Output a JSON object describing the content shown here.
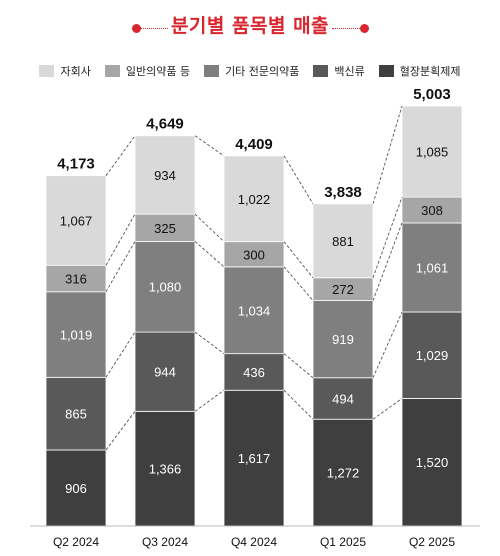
{
  "chart_data": {
    "type": "bar",
    "stacked": true,
    "title": "분기별 품목별 매출",
    "categories": [
      "Q2 2024",
      "Q3 2024",
      "Q4 2024",
      "Q1 2025",
      "Q2 2025"
    ],
    "series": [
      {
        "name": "혈장분획제제",
        "color": "#3f3f3f",
        "text_color": "#ffffff",
        "values": [
          906,
          1366,
          1617,
          1272,
          1520
        ]
      },
      {
        "name": "백신류",
        "color": "#595959",
        "text_color": "#ffffff",
        "values": [
          865,
          944,
          436,
          494,
          1029
        ]
      },
      {
        "name": "기타 전문의약품",
        "color": "#7f7f7f",
        "text_color": "#ffffff",
        "values": [
          1019,
          1080,
          1034,
          919,
          1061
        ]
      },
      {
        "name": "일반의약품 등",
        "color": "#a6a6a6",
        "text_color": "#111111",
        "values": [
          316,
          325,
          300,
          272,
          308
        ]
      },
      {
        "name": "자회사",
        "color": "#d9d9d9",
        "text_color": "#111111",
        "values": [
          1067,
          934,
          1022,
          881,
          1085
        ]
      }
    ],
    "totals": [
      4173,
      4649,
      4409,
      3838,
      5003
    ],
    "totals_labels": [
      "4,173",
      "4,649",
      "4,409",
      "3,838",
      "5,003"
    ],
    "segment_labels": [
      [
        "906",
        "865",
        "1,019",
        "316",
        "1,067"
      ],
      [
        "1,366",
        "944",
        "1,080",
        "325",
        "934"
      ],
      [
        "1,617",
        "436",
        "1,034",
        "300",
        "1,022"
      ],
      [
        "1,272",
        "494",
        "919",
        "272",
        "881"
      ],
      [
        "1,520",
        "1,029",
        "1,061",
        "308",
        "1,085"
      ]
    ],
    "legend_order": [
      "자회사",
      "일반의약품 등",
      "기타 전문의약품",
      "백신류",
      "혈장분획제제"
    ],
    "legend_position": "top",
    "connector_lines": "dashed",
    "ylim": [
      0,
      5003
    ]
  },
  "colors": {
    "title": "#d8252e"
  }
}
